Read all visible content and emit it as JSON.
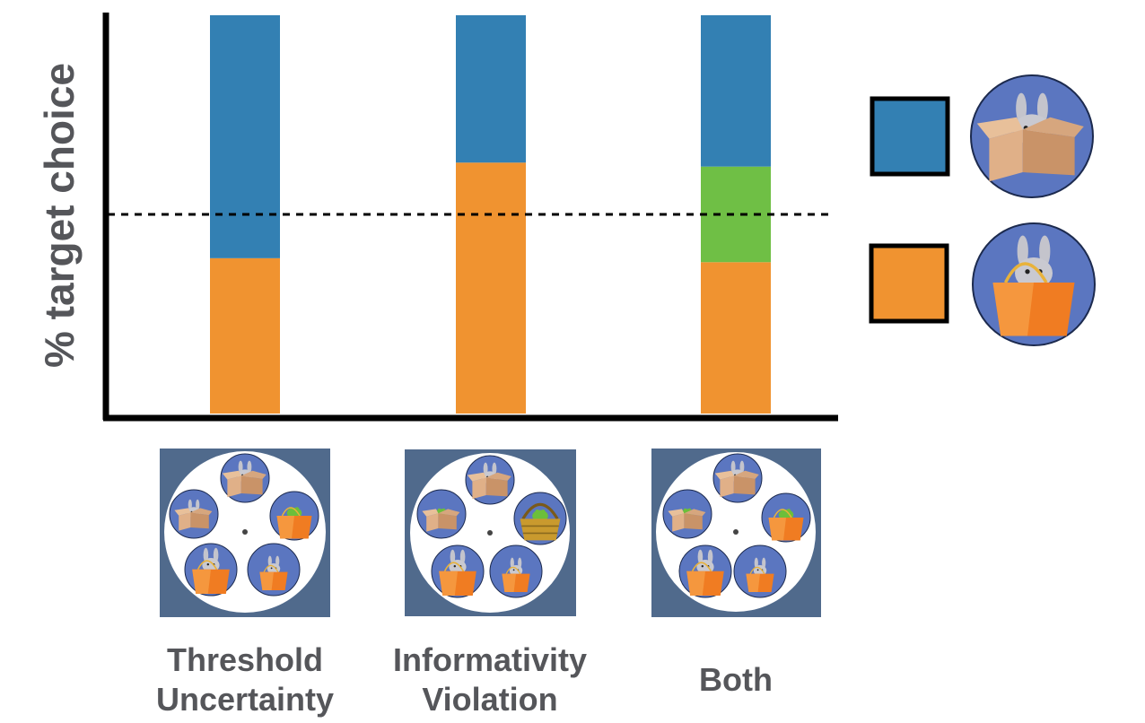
{
  "chart_data": {
    "type": "bar",
    "stacked": true,
    "ylabel": "% target choice",
    "xlabel": "",
    "title": "",
    "ylim": [
      0,
      100
    ],
    "reference_line": 50,
    "categories": [
      "Threshold\nUncertainty",
      "Informativity\nViolation",
      "Both"
    ],
    "series": [
      {
        "color": "#f09330",
        "values": [
          39,
          63,
          38
        ]
      },
      {
        "color": "#6fbf45",
        "values": [
          0,
          0,
          24
        ]
      },
      {
        "color": "#3380b3",
        "values": [
          61,
          37,
          38
        ]
      }
    ],
    "grid": false,
    "legend_position": "right"
  },
  "legend": {
    "items": [
      {
        "color": "#3380b3",
        "icon": "bunny-in-box-icon"
      },
      {
        "color": "#f09330",
        "icon": "bunny-in-bag-icon"
      }
    ]
  },
  "colors": {
    "axis": "#000000",
    "panel": "#506a8c",
    "circle": "#5b76c0",
    "text": "#55565a"
  }
}
